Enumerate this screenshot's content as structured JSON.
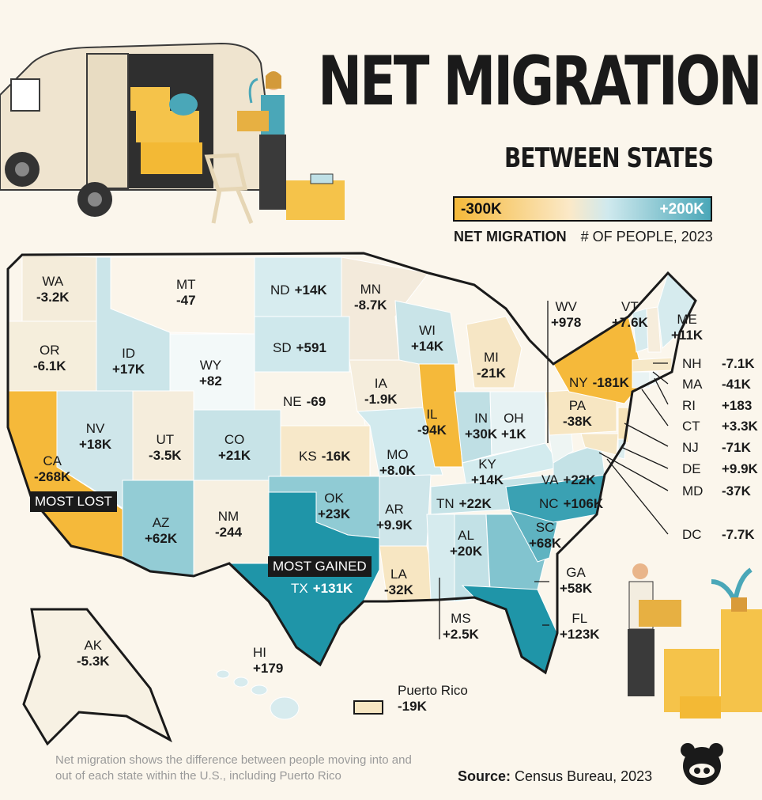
{
  "title": "NET MIGRATION",
  "subtitle": "BETWEEN STATES",
  "legend": {
    "min_label": "-300K",
    "max_label": "+200K",
    "caption_bold": "NET MIGRATION",
    "caption": "# OF PEOPLE, 2023",
    "colors": {
      "loss": "#f5b93a",
      "neutral": "#fbf1dd",
      "gain": "#4aa7b8"
    }
  },
  "states": {
    "WA": {
      "abbr": "WA",
      "value": "-3.2K"
    },
    "OR": {
      "abbr": "OR",
      "value": "-6.1K"
    },
    "CA": {
      "abbr": "CA",
      "value": "-268K"
    },
    "NV": {
      "abbr": "NV",
      "value": "+18K"
    },
    "ID": {
      "abbr": "ID",
      "value": "+17K"
    },
    "MT": {
      "abbr": "MT",
      "value": "-47"
    },
    "WY": {
      "abbr": "WY",
      "value": "+82"
    },
    "UT": {
      "abbr": "UT",
      "value": "-3.5K"
    },
    "CO": {
      "abbr": "CO",
      "value": "+21K"
    },
    "AZ": {
      "abbr": "AZ",
      "value": "+62K"
    },
    "NM": {
      "abbr": "NM",
      "value": "-244"
    },
    "ND": {
      "abbr": "ND",
      "value": "+14K"
    },
    "SD": {
      "abbr": "SD",
      "value": "+591"
    },
    "NE": {
      "abbr": "NE",
      "value": "-69"
    },
    "KS": {
      "abbr": "KS",
      "value": "-16K"
    },
    "OK": {
      "abbr": "OK",
      "value": "+23K"
    },
    "TX": {
      "abbr": "TX",
      "value": "+131K"
    },
    "MN": {
      "abbr": "MN",
      "value": "-8.7K"
    },
    "IA": {
      "abbr": "IA",
      "value": "-1.9K"
    },
    "MO": {
      "abbr": "MO",
      "value": "+8.0K"
    },
    "AR": {
      "abbr": "AR",
      "value": "+9.9K"
    },
    "LA": {
      "abbr": "LA",
      "value": "-32K"
    },
    "WI": {
      "abbr": "WI",
      "value": "+14K"
    },
    "IL": {
      "abbr": "IL",
      "value": "-94K"
    },
    "MI": {
      "abbr": "MI",
      "value": "-21K"
    },
    "IN": {
      "abbr": "IN",
      "value": "+30K"
    },
    "OH": {
      "abbr": "OH",
      "value": "+1K"
    },
    "KY": {
      "abbr": "KY",
      "value": "+14K"
    },
    "TN": {
      "abbr": "TN",
      "value": "+22K"
    },
    "MS": {
      "abbr": "MS",
      "value": "+2.5K"
    },
    "AL": {
      "abbr": "AL",
      "value": "+20K"
    },
    "GA": {
      "abbr": "GA",
      "value": "+58K"
    },
    "FL": {
      "abbr": "FL",
      "value": "+123K"
    },
    "SC": {
      "abbr": "SC",
      "value": "+68K"
    },
    "NC": {
      "abbr": "NC",
      "value": "+106K"
    },
    "VA": {
      "abbr": "VA",
      "value": "+22K"
    },
    "WV": {
      "abbr": "WV",
      "value": "+978"
    },
    "PA": {
      "abbr": "PA",
      "value": "-38K"
    },
    "NY": {
      "abbr": "NY",
      "value": "-181K"
    },
    "VT": {
      "abbr": "VT",
      "value": "+7.6K"
    },
    "ME": {
      "abbr": "ME",
      "value": "+11K"
    },
    "NH": {
      "abbr": "NH",
      "value": "-7.1K"
    },
    "MA": {
      "abbr": "MA",
      "value": "-41K"
    },
    "RI": {
      "abbr": "RI",
      "value": "+183"
    },
    "CT": {
      "abbr": "CT",
      "value": "+3.3K"
    },
    "NJ": {
      "abbr": "NJ",
      "value": "-71K"
    },
    "DE": {
      "abbr": "DE",
      "value": "+9.9K"
    },
    "MD": {
      "abbr": "MD",
      "value": "-37K"
    },
    "DC": {
      "abbr": "DC",
      "value": "-7.7K"
    },
    "AK": {
      "abbr": "AK",
      "value": "-5.3K"
    },
    "HI": {
      "abbr": "HI",
      "value": "+179"
    },
    "PR": {
      "abbr": "Puerto Rico",
      "value": "-19K"
    }
  },
  "tags": {
    "most_lost": "MOST LOST",
    "most_gained": "MOST GAINED"
  },
  "footnote": "Net migration shows the difference between people moving into and out of each state within the U.S., including Puerto Rico",
  "source": {
    "label": "Source:",
    "text": "Census Bureau, 2023"
  }
}
